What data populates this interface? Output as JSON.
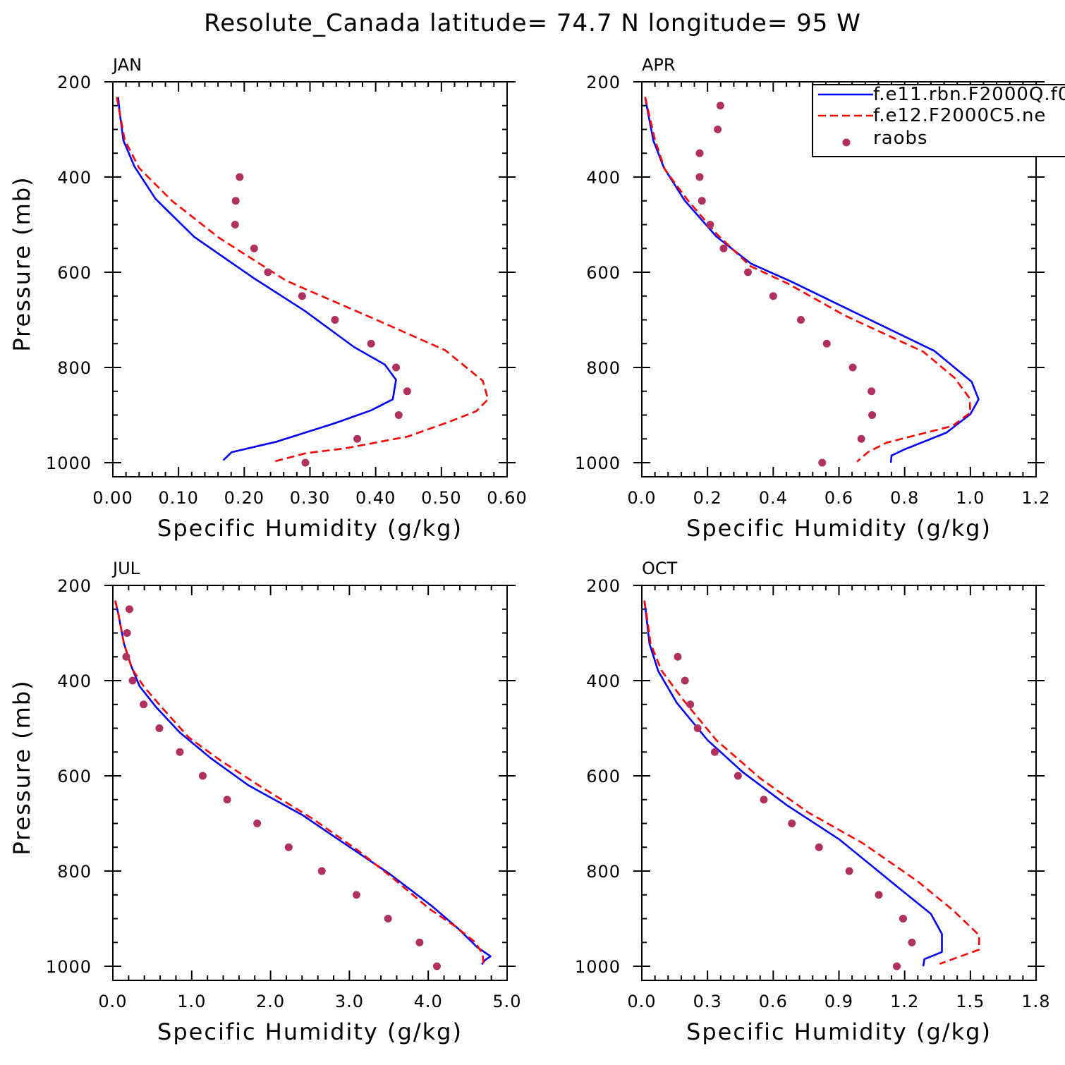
{
  "title": "Resolute_Canada  latitude= 74.7 N longitude= 95 W",
  "colors": {
    "model1": "#0000ff",
    "model2": "#ff0000",
    "raobs": "#b03060",
    "axes": "#000000"
  },
  "legend": {
    "placement": "top-right of APR panel, clipped at right edge",
    "entries": [
      {
        "label": "f.e11.rbn.F2000Q.f0",
        "style": "solid",
        "color": "#0000ff"
      },
      {
        "label": "f.e12.F2000C5.ne",
        "style": "dashed",
        "color": "#ff0000"
      },
      {
        "label": "raobs",
        "style": "dot",
        "color": "#b03060"
      }
    ]
  },
  "chart_data": [
    {
      "type": "line",
      "panel": "JAN",
      "xlabel": "Specific Humidity (g/kg)",
      "ylabel": "Pressure (mb)",
      "xlim": [
        0,
        0.6
      ],
      "ylim": [
        1000,
        200
      ],
      "x_ticks": [
        "0.00",
        "0.10",
        "0.20",
        "0.30",
        "0.40",
        "0.50",
        "0.60"
      ],
      "x_tick_values": [
        0,
        0.1,
        0.2,
        0.3,
        0.4,
        0.5,
        0.6
      ],
      "y_ticks": [
        "200",
        "400",
        "600",
        "800",
        "1000"
      ],
      "y_tick_values": [
        200,
        400,
        600,
        800,
        1000
      ],
      "series": [
        {
          "name": "f.e11.rbn.F2000Q.f0",
          "style": "solid",
          "x": [
            0.008,
            0.01,
            0.016,
            0.033,
            0.065,
            0.124,
            0.214,
            0.292,
            0.367,
            0.414,
            0.431,
            0.426,
            0.393,
            0.338,
            0.249,
            0.181,
            0.168
          ],
          "y": [
            232,
            260,
            323,
            378,
            446,
            526,
            612,
            681,
            757,
            794,
            826,
            867,
            890,
            917,
            956,
            978,
            995
          ]
        },
        {
          "name": "f.e12.F2000C5.ne",
          "style": "dashed",
          "x": [
            0.006,
            0.01,
            0.018,
            0.04,
            0.09,
            0.162,
            0.264,
            0.398,
            0.506,
            0.563,
            0.571,
            0.553,
            0.512,
            0.449,
            0.353,
            0.294,
            0.247
          ],
          "y": [
            232,
            262,
            322,
            381,
            450,
            528,
            618,
            698,
            764,
            828,
            867,
            892,
            914,
            945,
            970,
            980,
            997
          ]
        },
        {
          "name": "raobs",
          "style": "dot",
          "x": [
            0.193,
            0.187,
            0.186,
            0.215,
            0.236,
            0.288,
            0.338,
            0.393,
            0.431,
            0.448,
            0.435,
            0.372,
            0.293
          ],
          "y": [
            400,
            450,
            500,
            550,
            600,
            650,
            700,
            750,
            800,
            850,
            900,
            950,
            1000
          ]
        }
      ]
    },
    {
      "type": "line",
      "panel": "APR",
      "xlabel": "Specific Humidity (g/kg)",
      "ylabel": "",
      "xlim": [
        0,
        1.2
      ],
      "ylim": [
        1000,
        200
      ],
      "x_ticks": [
        "0.0",
        "0.2",
        "0.4",
        "0.6",
        "0.8",
        "1.0",
        "1.2"
      ],
      "x_tick_values": [
        0,
        0.2,
        0.4,
        0.6,
        0.8,
        1.0,
        1.2
      ],
      "y_ticks": [
        "200",
        "400",
        "600",
        "800",
        "1000"
      ],
      "y_tick_values": [
        200,
        400,
        600,
        800,
        1000
      ],
      "series": [
        {
          "name": "f.e11.rbn.F2000Q.f0",
          "style": "solid",
          "x": [
            0.01,
            0.018,
            0.035,
            0.067,
            0.13,
            0.227,
            0.332,
            0.453,
            0.638,
            0.89,
            1.004,
            1.025,
            1.0,
            0.927,
            0.8,
            0.76,
            0.758
          ],
          "y": [
            232,
            262,
            323,
            380,
            449,
            525,
            582,
            619,
            681,
            765,
            830,
            867,
            898,
            937,
            972,
            985,
            1000
          ]
        },
        {
          "name": "f.e12.F2000C5.ne",
          "style": "dashed",
          "x": [
            0.01,
            0.02,
            0.04,
            0.07,
            0.14,
            0.23,
            0.33,
            0.445,
            0.618,
            0.857,
            0.952,
            0.998,
            1.0,
            0.945,
            0.745,
            0.688,
            0.655
          ],
          "y": [
            232,
            262,
            322,
            384,
            449,
            521,
            587,
            624,
            691,
            767,
            822,
            865,
            895,
            923,
            958,
            978,
            998
          ]
        },
        {
          "name": "raobs",
          "style": "dot",
          "x": [
            0.239,
            0.231,
            0.176,
            0.176,
            0.183,
            0.208,
            0.249,
            0.323,
            0.4,
            0.484,
            0.563,
            0.642,
            0.699,
            0.701,
            0.668,
            0.549
          ],
          "y": [
            250,
            300,
            350,
            400,
            450,
            500,
            550,
            600,
            650,
            700,
            750,
            800,
            850,
            900,
            950,
            1000
          ]
        }
      ]
    },
    {
      "type": "line",
      "panel": "JUL",
      "xlabel": "Specific Humidity (g/kg)",
      "ylabel": "Pressure (mb)",
      "xlim": [
        0,
        5
      ],
      "ylim": [
        1000,
        200
      ],
      "x_ticks": [
        "0.0",
        "1.0",
        "2.0",
        "3.0",
        "4.0",
        "5.0"
      ],
      "x_tick_values": [
        0,
        1,
        2,
        3,
        4,
        5
      ],
      "y_ticks": [
        "200",
        "400",
        "600",
        "800",
        "1000"
      ],
      "y_tick_values": [
        200,
        400,
        600,
        800,
        1000
      ],
      "series": [
        {
          "name": "f.e11.rbn.F2000Q.f0",
          "style": "solid",
          "x": [
            0.03,
            0.07,
            0.14,
            0.24,
            0.34,
            0.55,
            0.85,
            1.25,
            1.72,
            2.41,
            2.9,
            3.51,
            4.05,
            4.38,
            4.62,
            4.79,
            4.72,
            4.68
          ],
          "y": [
            232,
            260,
            322,
            372,
            412,
            456,
            509,
            564,
            620,
            683,
            738,
            806,
            874,
            921,
            960,
            979,
            987,
            996
          ]
        },
        {
          "name": "f.e12.F2000C5.ne",
          "style": "dashed",
          "x": [
            0.03,
            0.07,
            0.14,
            0.24,
            0.4,
            0.62,
            0.96,
            1.35,
            1.85,
            2.55,
            3.12,
            3.56,
            4.02,
            4.35,
            4.6,
            4.69,
            4.7
          ],
          "y": [
            232,
            260,
            322,
            374,
            414,
            456,
            519,
            566,
            620,
            692,
            758,
            816,
            880,
            917,
            950,
            975,
            995
          ]
        },
        {
          "name": "raobs",
          "style": "dot",
          "x": [
            0.21,
            0.18,
            0.17,
            0.25,
            0.39,
            0.59,
            0.85,
            1.14,
            1.45,
            1.83,
            2.23,
            2.65,
            3.09,
            3.49,
            3.89,
            4.11
          ],
          "y": [
            250,
            300,
            350,
            400,
            450,
            500,
            550,
            600,
            650,
            700,
            750,
            800,
            850,
            900,
            950,
            1000
          ]
        }
      ]
    },
    {
      "type": "line",
      "panel": "OCT",
      "xlabel": "Specific Humidity (g/kg)",
      "ylabel": "",
      "xlim": [
        0,
        1.8
      ],
      "ylim": [
        1000,
        200
      ],
      "x_ticks": [
        "0.0",
        "0.3",
        "0.6",
        "0.9",
        "1.2",
        "1.5",
        "1.8"
      ],
      "x_tick_values": [
        0,
        0.3,
        0.6,
        0.9,
        1.2,
        1.5,
        1.8
      ],
      "y_ticks": [
        "200",
        "400",
        "600",
        "800",
        "1000"
      ],
      "y_tick_values": [
        200,
        400,
        600,
        800,
        1000
      ],
      "series": [
        {
          "name": "f.e11.rbn.F2000Q.f0",
          "style": "solid",
          "x": [
            0.012,
            0.02,
            0.035,
            0.075,
            0.16,
            0.3,
            0.46,
            0.66,
            0.9,
            1.14,
            1.32,
            1.37,
            1.37,
            1.29,
            1.285
          ],
          "y": [
            232,
            262,
            323,
            380,
            447,
            525,
            592,
            661,
            733,
            823,
            890,
            932,
            970,
            985,
            1000
          ]
        },
        {
          "name": "f.e12.F2000C5.ne",
          "style": "dashed",
          "x": [
            0.012,
            0.022,
            0.04,
            0.09,
            0.19,
            0.34,
            0.54,
            0.76,
            1.01,
            1.26,
            1.42,
            1.54,
            1.54,
            1.36
          ],
          "y": [
            232,
            262,
            322,
            379,
            441,
            525,
            605,
            677,
            742,
            822,
            882,
            935,
            965,
            995
          ]
        },
        {
          "name": "raobs",
          "style": "dot",
          "x": [
            0.164,
            0.197,
            0.221,
            0.255,
            0.333,
            0.439,
            0.557,
            0.685,
            0.809,
            0.947,
            1.082,
            1.193,
            1.233,
            1.164
          ],
          "y": [
            350,
            400,
            450,
            500,
            550,
            600,
            650,
            700,
            750,
            800,
            850,
            900,
            950,
            1000
          ]
        }
      ]
    }
  ]
}
